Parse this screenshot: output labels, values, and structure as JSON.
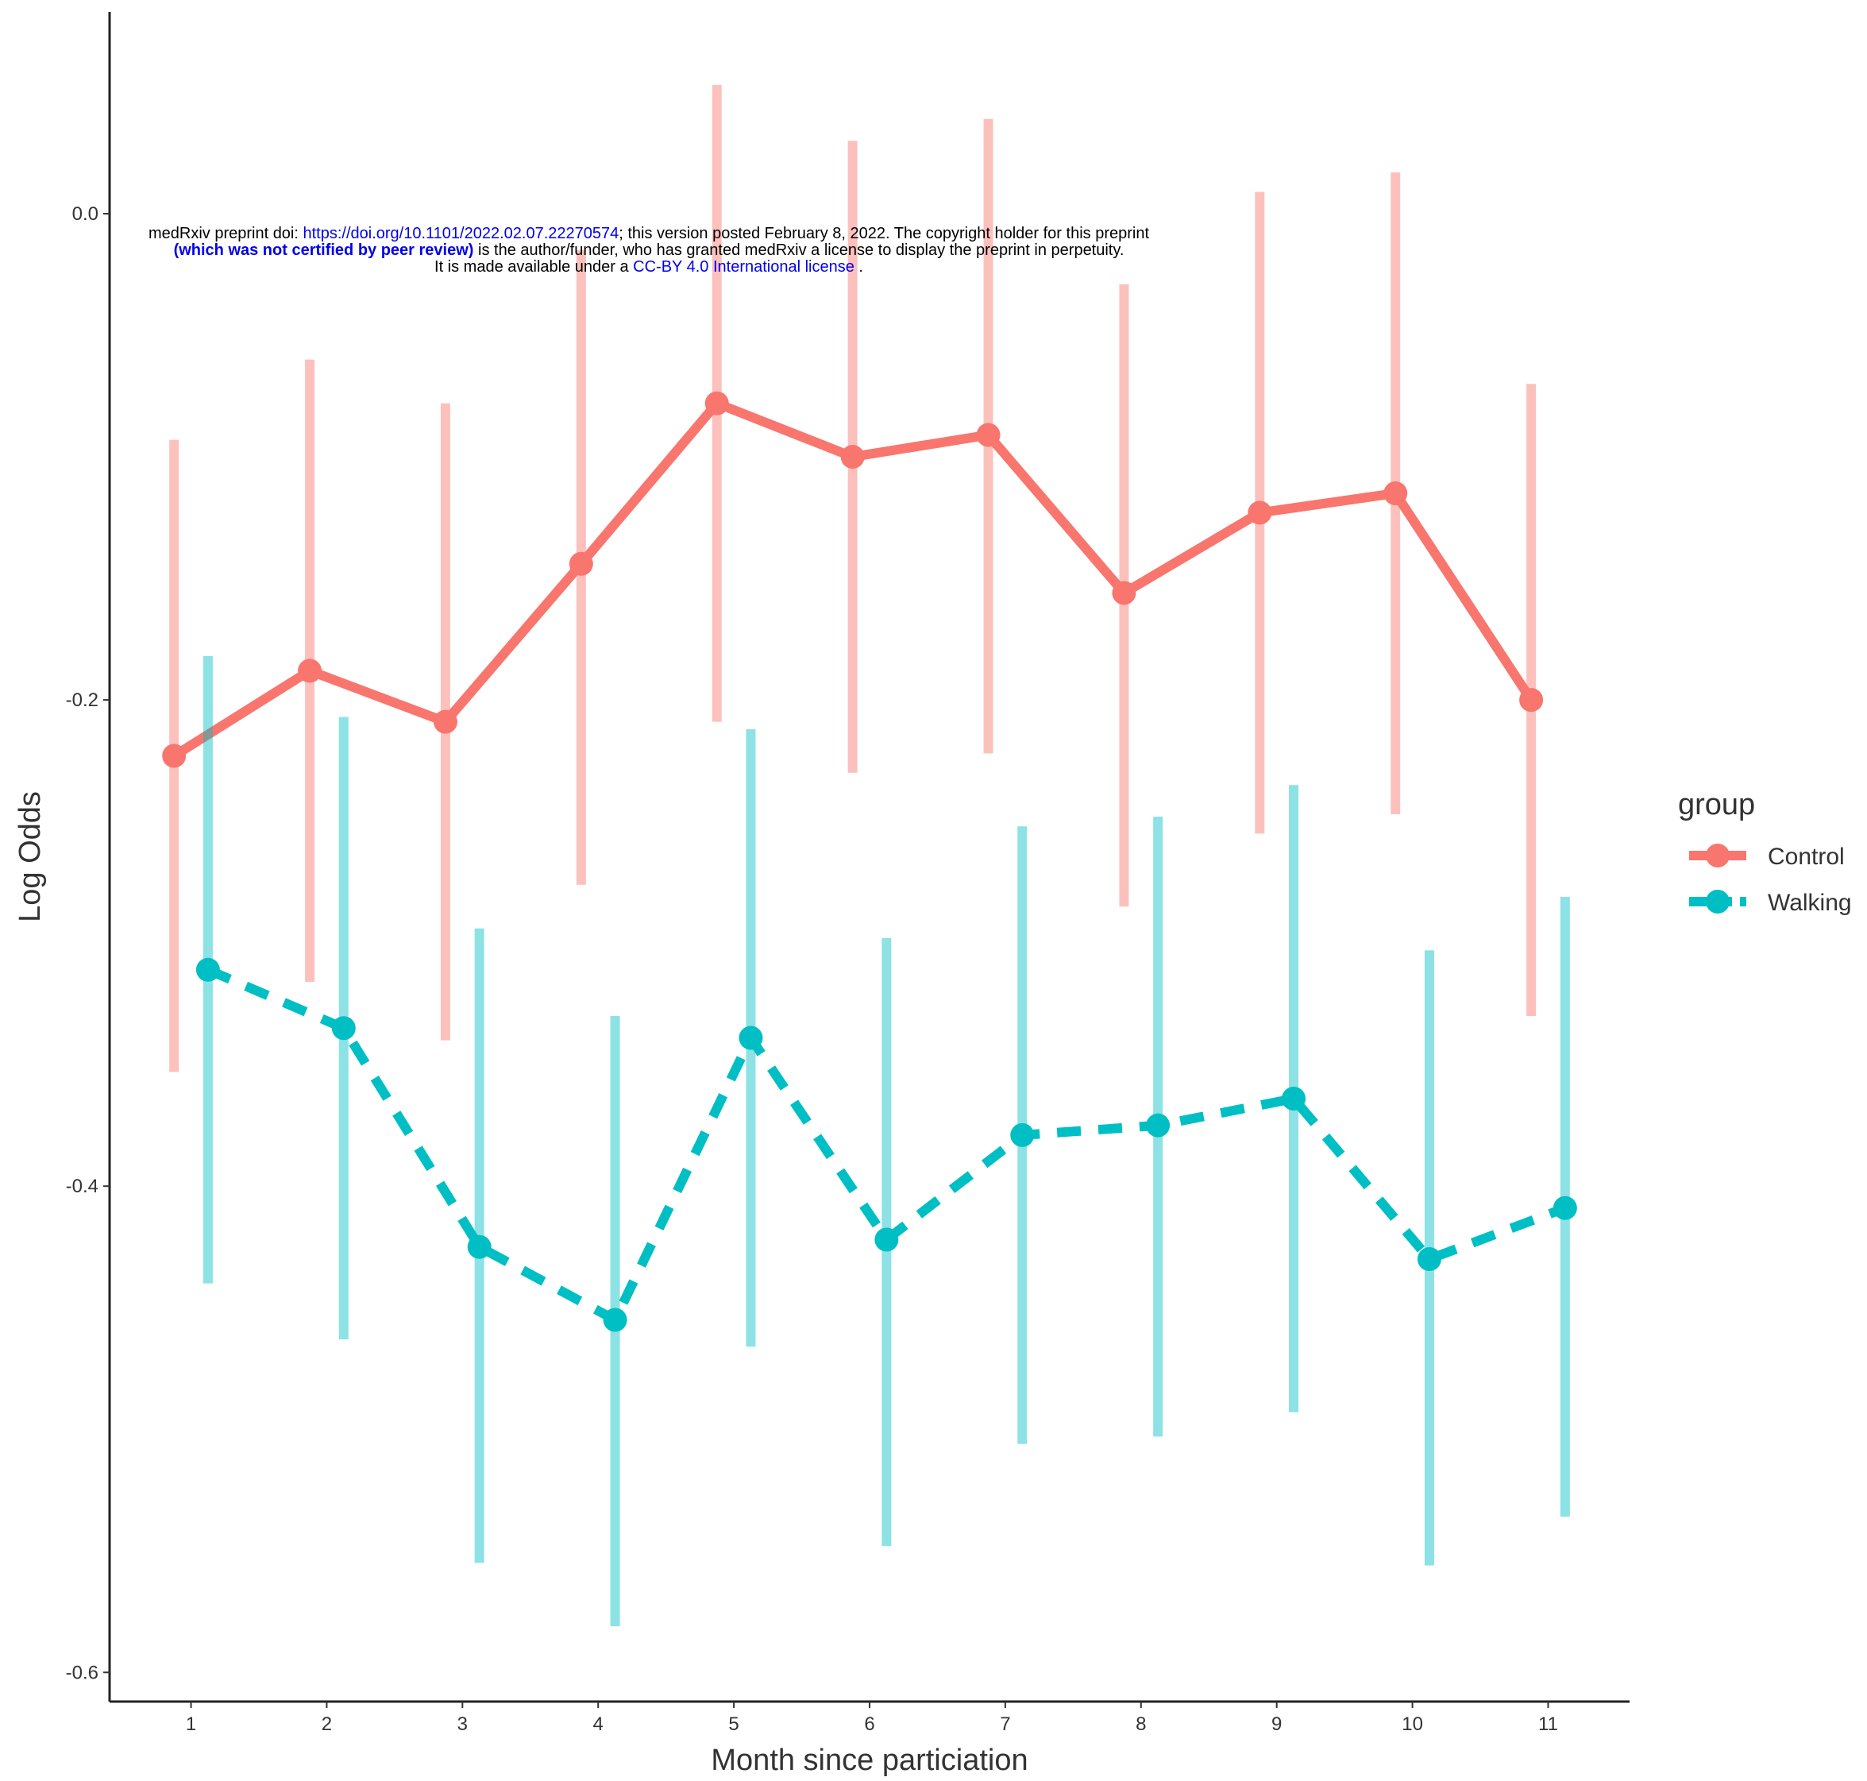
{
  "preprint_notice": {
    "line1": [
      "medRxiv preprint doi: ",
      "https://doi.org/10.1101/2022.02.07.22270574",
      "; this version posted February 8, 2022. The copyright holder for this preprint"
    ],
    "line2": [
      "(which was not certified by peer review)",
      " is the author/funder, who has granted medRxiv a license to display the preprint in perpetuity."
    ],
    "line3": [
      "It is made available under a ",
      "CC-BY 4.0 International license",
      " ."
    ]
  },
  "chart_data": {
    "type": "line",
    "x_label": "Month since particiation",
    "y_label": "Log Odds",
    "legend_title": "group",
    "legend_position": "right",
    "x": [
      1,
      2,
      3,
      4,
      5,
      6,
      7,
      8,
      9,
      10,
      11
    ],
    "xlim": [
      0.4,
      11.6
    ],
    "xticks": [
      1,
      2,
      3,
      4,
      5,
      6,
      7,
      8,
      9,
      10,
      11
    ],
    "ylim": [
      -0.612,
      0.083
    ],
    "yticks": [
      {
        "value": 0,
        "label": "0.0"
      },
      -0.2,
      -0.4,
      -0.6
    ],
    "grid": false,
    "series": [
      {
        "name": "Control",
        "color": "#F8766D",
        "dash": false,
        "values": [
          -0.223,
          -0.188,
          -0.209,
          -0.144,
          -0.078,
          -0.1,
          -0.091,
          -0.156,
          -0.123,
          -0.115,
          -0.2
        ],
        "lower": [
          -0.353,
          -0.316,
          -0.34,
          -0.276,
          -0.209,
          -0.23,
          -0.222,
          -0.285,
          -0.255,
          -0.247,
          -0.33
        ],
        "upper": [
          -0.093,
          -0.06,
          -0.078,
          -0.015,
          0.053,
          0.03,
          0.039,
          -0.029,
          0.009,
          0.017,
          -0.07
        ]
      },
      {
        "name": "Walking",
        "color": "#00BFC4",
        "dash": true,
        "values": [
          -0.311,
          -0.335,
          -0.425,
          -0.455,
          -0.339,
          -0.422,
          -0.379,
          -0.375,
          -0.364,
          -0.43,
          -0.409
        ],
        "lower": [
          -0.44,
          -0.463,
          -0.555,
          -0.581,
          -0.466,
          -0.548,
          -0.506,
          -0.503,
          -0.493,
          -0.556,
          -0.536
        ],
        "upper": [
          -0.182,
          -0.207,
          -0.294,
          -0.33,
          -0.212,
          -0.298,
          -0.252,
          -0.248,
          -0.235,
          -0.303,
          -0.281
        ]
      }
    ]
  }
}
